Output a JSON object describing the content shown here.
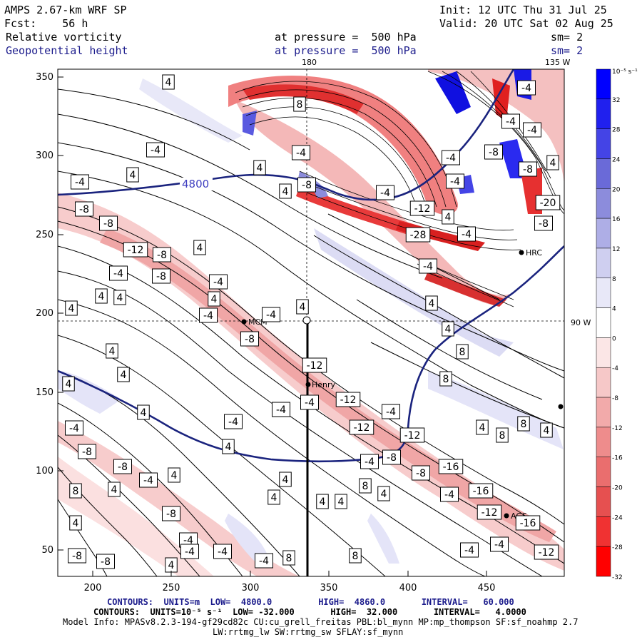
{
  "header": {
    "model": "AMPS 2.67-km WRF SP",
    "init": "Init: 12 UTC Thu 31 Jul 25",
    "fcst": "Fcst:    56 h",
    "valid": "Valid: 20 UTC Sat 02 Aug 25",
    "field1": "Relative vorticity",
    "field1_level": "at pressure =  500 hPa",
    "field1_smooth": "sm= 2",
    "field2": "Geopotential height",
    "field2_level": "at pressure =  500 hPa",
    "field2_smooth": "sm= 2"
  },
  "map": {
    "top_labels": [
      "180",
      "135 W"
    ],
    "right_label": "90 W",
    "x_ticks": [
      "200",
      "250",
      "300",
      "350",
      "400",
      "450"
    ],
    "y_ticks": [
      "350",
      "300",
      "250",
      "200",
      "150",
      "100",
      "50"
    ],
    "height_contour_label": "4800",
    "stations": [
      "MCM",
      "Henry",
      "HRC",
      "AGS"
    ],
    "vorticity_labels": [
      "4",
      "-4",
      "8",
      "-8",
      "-12",
      "-16",
      "-20",
      "-28",
      "12"
    ]
  },
  "colorbar": {
    "unit": "10⁻⁵ s⁻¹",
    "ticks": [
      "32",
      "28",
      "24",
      "20",
      "16",
      "12",
      "8",
      "4",
      "0",
      "-4",
      "-8",
      "-12",
      "-16",
      "-20",
      "-24",
      "-28",
      "-32"
    ],
    "colors": [
      "#0000ff",
      "#2020ee",
      "#4444e6",
      "#6a6ad8",
      "#8c8cdc",
      "#aeaee6",
      "#cfcff0",
      "#e8e8f8",
      "#ffffff",
      "#fbe6e6",
      "#f6c8c8",
      "#f2aaaa",
      "#ee8c8c",
      "#ea6e6e",
      "#e65050",
      "#f03232",
      "#ff0000"
    ]
  },
  "footer": {
    "line1": "CONTOURS:  UNITS=m  LOW=  4800.0         HIGH=  4860.0       INTERVAL=   60.000",
    "line2": "CONTOURS:  UNITS=10⁻⁵ s⁻¹  LOW= -32.000       HIGH=  32.000       INTERVAL=   4.0000",
    "line3": "Model Info: MPASv8.2.3-194-gf29cd82c CU:cu_grell_freitas PBL:bl_mynn MP:mp_thompson SF:sf_noahmp 2.7",
    "line4": "LW:rrtmg_lw SW:rrtmg_sw SFLAY:sf_mynn"
  },
  "colors": {
    "height_contour": "#1a237e",
    "title_blue": "#1c1c8c"
  }
}
